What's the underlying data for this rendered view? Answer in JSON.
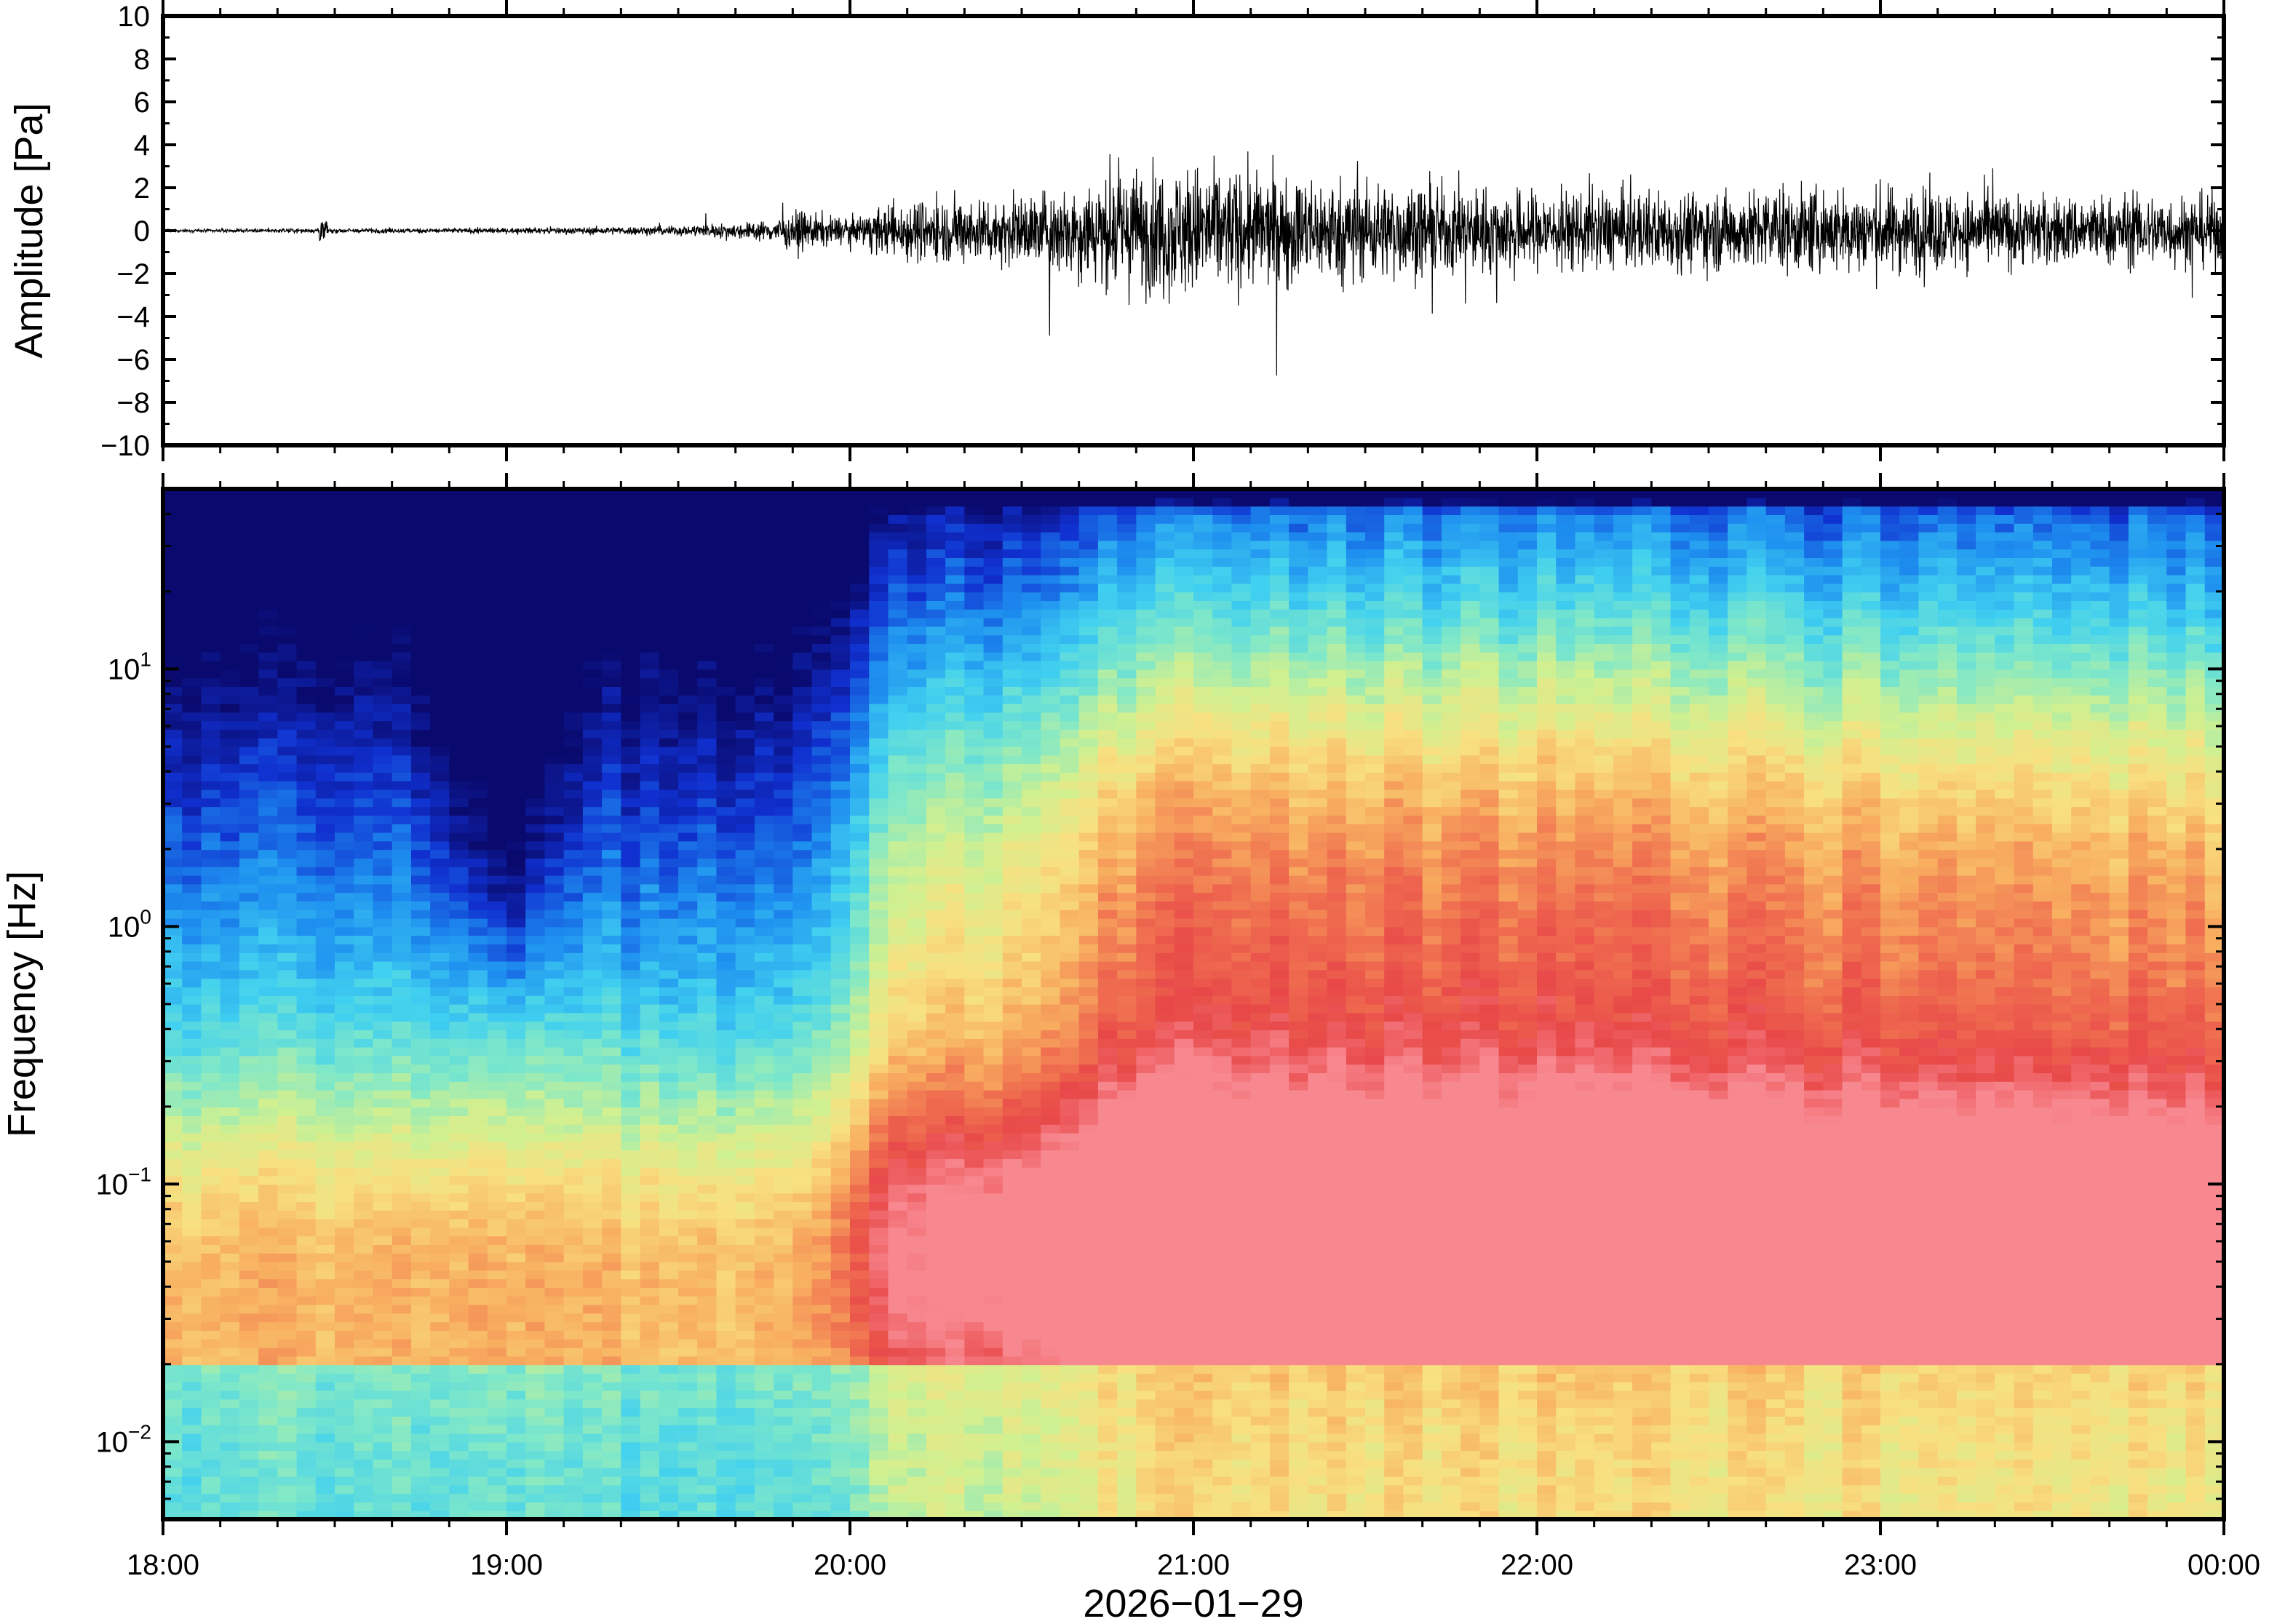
{
  "chart_data": [
    {
      "type": "line",
      "title": "",
      "xlabel": "",
      "ylabel": "Amplitude [Pa]",
      "ylim": [
        -10,
        10
      ],
      "yticks": [
        "10",
        "8",
        "6",
        "4",
        "2",
        "0",
        "−2",
        "−4",
        "−6",
        "−8",
        "−10"
      ],
      "ytick_values": [
        10,
        8,
        6,
        4,
        2,
        0,
        -2,
        -4,
        -6,
        -8,
        -10
      ],
      "xlim": [
        "18:00",
        "00:00"
      ],
      "series": [
        {
          "color": "#000000",
          "envelope_time_hours": [
            0,
            0.5,
            1.0,
            1.5,
            1.75,
            1.85,
            2.0,
            2.15,
            2.5,
            2.8,
            3.0,
            3.2,
            3.5,
            4.0,
            4.5,
            5.0,
            5.5,
            6.0
          ],
          "envelope_amplitude_pa": [
            0.05,
            0.1,
            0.1,
            0.2,
            0.4,
            0.8,
            0.5,
            1.2,
            1.4,
            2.5,
            2.7,
            2.3,
            2.0,
            1.6,
            1.6,
            1.8,
            1.4,
            1.5
          ]
        }
      ]
    },
    {
      "type": "heatmap",
      "title": "",
      "xlabel": "2026−01−29",
      "ylabel": "Frequency [Hz]",
      "yscale": "log",
      "ylim": [
        0.005,
        50
      ],
      "yticks": [
        {
          "base": "10",
          "exp": "1",
          "value": 10
        },
        {
          "base": "10",
          "exp": "0",
          "value": 1
        },
        {
          "base": "10",
          "exp": "−1",
          "value": 0.1
        },
        {
          "base": "10",
          "exp": "−2",
          "value": 0.01
        }
      ],
      "xticks": [
        "18:00",
        "19:00",
        "20:00",
        "21:00",
        "22:00",
        "23:00",
        "00:00"
      ],
      "colormap": [
        "#0a0a6e",
        "#1030d0",
        "#1e90f0",
        "#40d0f0",
        "#80e8c8",
        "#d0f090",
        "#f8e080",
        "#f8b060",
        "#f07050",
        "#e84848",
        "#f88890"
      ]
    }
  ]
}
